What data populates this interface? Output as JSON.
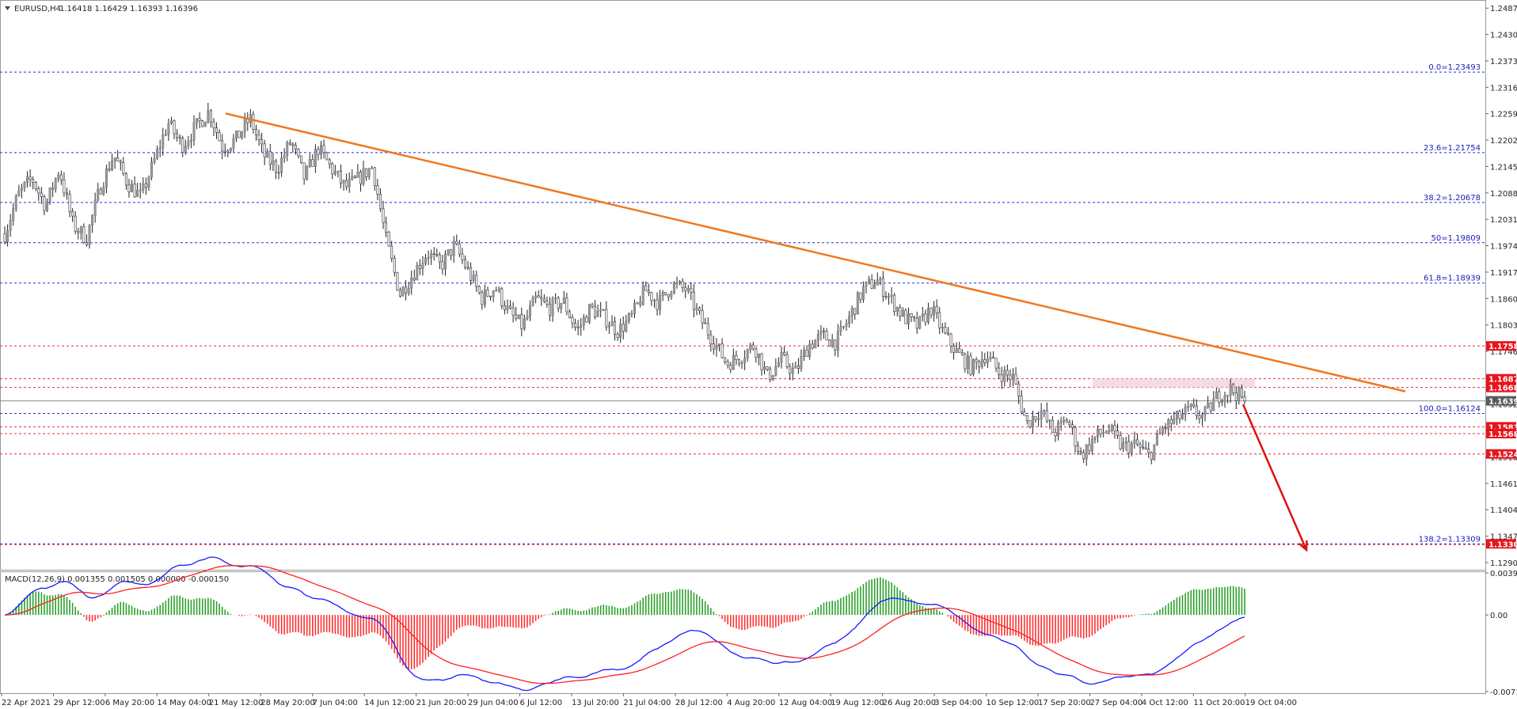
{
  "window": {
    "title": "EURUSD,H4",
    "ohlc": "1.16418 1.16429 1.16393 1.16396"
  },
  "chart_data": {
    "type": "candlestick",
    "symbol": "EURUSD",
    "timeframe": "H4",
    "ylim": [
      1.1275,
      1.2505
    ],
    "grid": false,
    "y_ticks": [
      "1.24875",
      "1.24305",
      "1.23735",
      "1.23165",
      "1.22595",
      "1.22025",
      "1.21455",
      "1.20885",
      "1.20315",
      "1.19745",
      "1.19175",
      "1.18605",
      "1.18035",
      "1.17465",
      "1.16895",
      "1.16325",
      "1.15755",
      "1.15185",
      "1.14615",
      "1.14045",
      "1.13475",
      "1.12905"
    ],
    "x_labels": [
      "22 Apr 2021",
      "29 Apr 12:00",
      "6 May 20:00",
      "14 May 04:00",
      "21 May 12:00",
      "28 May 20:00",
      "7 Jun 04:00",
      "14 Jun 12:00",
      "21 Jun 20:00",
      "29 Jun 04:00",
      "6 Jul 12:00",
      "13 Jul 20:00",
      "21 Jul 04:00",
      "28 Jul 12:00",
      "4 Aug 20:00",
      "12 Aug 04:00",
      "19 Aug 12:00",
      "26 Aug 20:00",
      "3 Sep 04:00",
      "10 Sep 12:00",
      "17 Sep 20:00",
      "27 Sep 04:00",
      "4 Oct 12:00",
      "11 Oct 20:00",
      "19 Oct 04:00"
    ],
    "price_path": [
      1.2,
      1.2085,
      1.212,
      1.206,
      1.214,
      1.202,
      1.199,
      1.21,
      1.217,
      1.211,
      1.208,
      1.216,
      1.224,
      1.219,
      1.223,
      1.2265,
      1.2185,
      1.2205,
      1.225,
      1.217,
      1.214,
      1.22,
      1.212,
      1.2185,
      1.214,
      1.21,
      1.212,
      1.2145,
      1.1985,
      1.187,
      1.1915,
      1.196,
      1.193,
      1.1975,
      1.192,
      1.186,
      1.1885,
      1.183,
      1.18,
      1.186,
      1.184,
      1.1855,
      1.179,
      1.184,
      1.182,
      1.179,
      1.182,
      1.188,
      1.185,
      1.189,
      1.188,
      1.182,
      1.177,
      1.172,
      1.1735,
      1.176,
      1.169,
      1.173,
      1.17,
      1.176,
      1.178,
      1.1765,
      1.182,
      1.188,
      1.19,
      1.186,
      1.182,
      1.18,
      1.184,
      1.178,
      1.174,
      1.171,
      1.174,
      1.17,
      1.169,
      1.159,
      1.162,
      1.157,
      1.16,
      1.152,
      1.156,
      1.158,
      1.154,
      1.1545,
      1.152,
      1.158,
      1.16,
      1.162,
      1.1605,
      1.165,
      1.1665,
      1.164
    ],
    "fib_levels": [
      {
        "label": "0.0=1.23493",
        "value": 1.23493
      },
      {
        "label": "23.6=1.21754",
        "value": 1.21754
      },
      {
        "label": "38.2=1.20678",
        "value": 1.20678
      },
      {
        "label": "50=1.19809",
        "value": 1.19809
      },
      {
        "label": "61.8=1.18939",
        "value": 1.18939
      },
      {
        "label": "100.0=1.16124",
        "value": 1.16124
      },
      {
        "label": "138.2=1.13309",
        "value": 1.13309
      }
    ],
    "price_boxes": [
      {
        "label": "1.17582",
        "value": 1.17582,
        "color": "#e8141c"
      },
      {
        "label": "1.16873",
        "value": 1.16873,
        "color": "#e8141c"
      },
      {
        "label": "1.16685",
        "value": 1.16685,
        "color": "#e8141c"
      },
      {
        "label": "1.16396",
        "value": 1.16396,
        "color": "#5a5a5a"
      },
      {
        "label": "1.15836",
        "value": 1.15836,
        "color": "#e8141c"
      },
      {
        "label": "1.15689",
        "value": 1.15689,
        "color": "#e8141c"
      },
      {
        "label": "1.15249",
        "value": 1.15249,
        "color": "#e8141c"
      },
      {
        "label": "1.13309",
        "value": 1.13309,
        "color": "#e8141c"
      }
    ],
    "resistance_zone": [
      1.16685,
      1.16873
    ],
    "trendline": {
      "color": "#f07820",
      "from": 1.226,
      "to": 1.166
    },
    "projection_arrow": {
      "color": "#dd1111",
      "from": 1.1632,
      "to": 1.1318
    },
    "macd": {
      "label": "MACD(12,26,9) 0.001355 0.001505 0.000000 -0.000150",
      "y_ticks": [
        "0.003919",
        "0.00",
        "-0.00714"
      ],
      "ylim": [
        -0.00714,
        0.003919
      ],
      "macd_color": "#1a1aff",
      "signal_color": "#ff2020",
      "hist_pos_color": "#2ca02c",
      "hist_neg_color": "#ff3030"
    }
  }
}
